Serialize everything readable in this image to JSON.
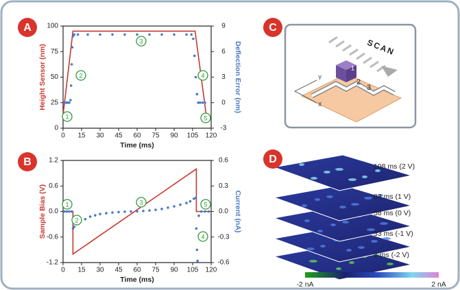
{
  "panels": [
    "A",
    "B",
    "C",
    "D"
  ],
  "chart_data": [
    {
      "type": "line",
      "xlabel": "Time (ms)",
      "ylabel": "Height Sensor (nm)",
      "y2label": "Deflection Error (nm)",
      "xlim": [
        0,
        120
      ],
      "xticks": [
        0,
        15,
        30,
        45,
        60,
        75,
        90,
        105,
        120
      ],
      "ylim": [
        0,
        100
      ],
      "yticks": [
        0,
        25,
        50,
        75,
        100
      ],
      "y2lim": [
        -3,
        9
      ],
      "y2ticks": [
        -3,
        0,
        3,
        6,
        9
      ],
      "annotations": [
        "1",
        "2",
        "3",
        "4",
        "5"
      ],
      "series": [
        {
          "type": "line",
          "axis": "y",
          "color": "#c8372d",
          "x": [
            0,
            8,
            107,
            116
          ],
          "values": [
            13,
            95,
            95,
            13
          ]
        },
        {
          "type": "scatter",
          "axis": "y2",
          "color": "#4a78c2",
          "x": [
            1,
            2,
            3,
            4,
            5,
            6,
            6.5,
            7,
            7.5,
            8,
            9,
            12,
            20,
            30,
            40,
            50,
            60,
            70,
            80,
            90,
            100,
            104,
            105.5,
            106.5,
            107.5,
            108.5,
            109.5,
            111,
            113,
            115
          ],
          "values": [
            0,
            0,
            0,
            0,
            0,
            0.3,
            2,
            4.5,
            6.5,
            7.8,
            8,
            8,
            8,
            8,
            8,
            8,
            8,
            8,
            8,
            8,
            8,
            8,
            7.5,
            5.5,
            3,
            1,
            0,
            0,
            0,
            0
          ]
        }
      ]
    },
    {
      "type": "line",
      "xlabel": "Time (ms)",
      "ylabel": "Sample Bias (V)",
      "y2label": "Current (nA)",
      "xlim": [
        0,
        120
      ],
      "xticks": [
        0,
        15,
        30,
        45,
        60,
        75,
        90,
        105,
        120
      ],
      "ylim": [
        -1.2,
        1.2
      ],
      "yticks": [
        -1.2,
        -0.6,
        {
          "value": 0,
          "label": "0.0"
        },
        0.6,
        1.2
      ],
      "y2lim": [
        -0.6,
        0.6
      ],
      "y2ticks": [
        -0.6,
        -0.3,
        {
          "value": 0,
          "label": "0.0"
        },
        0.3,
        0.6
      ],
      "annotations": [
        "1",
        "2",
        "3",
        "4",
        "5"
      ],
      "series": [
        {
          "type": "line",
          "axis": "y",
          "color": "#c8372d",
          "x": [
            0,
            8,
            8,
            108,
            108,
            120
          ],
          "values": [
            0,
            0,
            -1,
            1,
            0,
            0
          ]
        },
        {
          "type": "scatter",
          "axis": "y2",
          "color": "#4a78c2",
          "x": [
            1,
            3,
            5,
            7,
            8,
            9,
            11,
            14,
            18,
            22,
            26,
            30,
            35,
            40,
            45,
            50,
            55,
            60,
            65,
            70,
            75,
            80,
            85,
            90,
            95,
            100,
            103,
            106,
            107.5,
            108,
            108.5,
            109,
            110,
            112,
            115,
            118
          ],
          "values": [
            0,
            0,
            0,
            0,
            -0.2,
            -0.18,
            -0.15,
            -0.12,
            -0.09,
            -0.06,
            -0.045,
            -0.03,
            -0.02,
            -0.012,
            -0.006,
            -0.002,
            0,
            0.002,
            0.006,
            0.012,
            0.02,
            0.03,
            0.045,
            0.06,
            0.08,
            0.1,
            0.12,
            0.15,
            0.16,
            -0.2,
            -0.45,
            -0.58,
            -0.05,
            0,
            0,
            0
          ]
        }
      ]
    }
  ],
  "diagram": {
    "scan": "SCAN",
    "axis_y": "Y",
    "axis_x": "X",
    "steps": [
      "1",
      "2",
      "3"
    ]
  },
  "image": {
    "layers": [
      "108 ms (2 V)",
      "83 ms (1 V)",
      "58 ms (0 V)",
      "33 ms (-1 V)",
      "8 ms (-2 V)"
    ],
    "colorbar": [
      "-2 nA",
      "2 nA"
    ]
  }
}
